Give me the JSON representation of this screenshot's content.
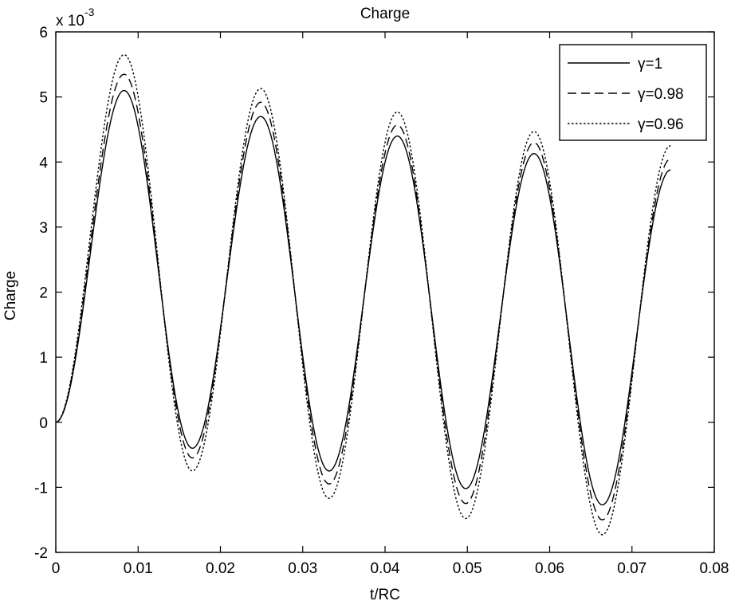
{
  "chart_data": {
    "type": "line",
    "title": "Charge",
    "xlabel": "t/RC",
    "ylabel": "Charge",
    "xlim": [
      0,
      0.08
    ],
    "ylim": [
      -2,
      6
    ],
    "x_ticks": [
      "0",
      "0.01",
      "0.02",
      "0.03",
      "0.04",
      "0.05",
      "0.06",
      "0.07",
      "0.08"
    ],
    "y_ticks": [
      "-2",
      "-1",
      "0",
      "1",
      "2",
      "3",
      "4",
      "5",
      "6"
    ],
    "y_multiplier_base": "x 10",
    "y_multiplier_exp": "-3",
    "grid": false,
    "legend_position": "top-right",
    "x": [
      0,
      0.0083,
      0.0166,
      0.0249,
      0.0332,
      0.0415,
      0.0498,
      0.0581,
      0.0664,
      0.0747
    ],
    "series": [
      {
        "name": "γ=1",
        "line_style": "solid",
        "extrema": [
          0,
          5.1,
          -0.4,
          4.7,
          -0.75,
          4.4,
          -1.02,
          4.13,
          -1.27,
          3.88
        ]
      },
      {
        "name": "γ=0.98",
        "line_style": "dashed",
        "extrema": [
          0,
          5.35,
          -0.55,
          4.92,
          -0.95,
          4.57,
          -1.25,
          4.3,
          -1.5,
          4.05
        ]
      },
      {
        "name": "γ=0.96",
        "line_style": "dotted",
        "extrema": [
          0,
          5.65,
          -0.75,
          5.13,
          -1.17,
          4.77,
          -1.48,
          4.47,
          -1.73,
          4.25
        ]
      }
    ]
  }
}
